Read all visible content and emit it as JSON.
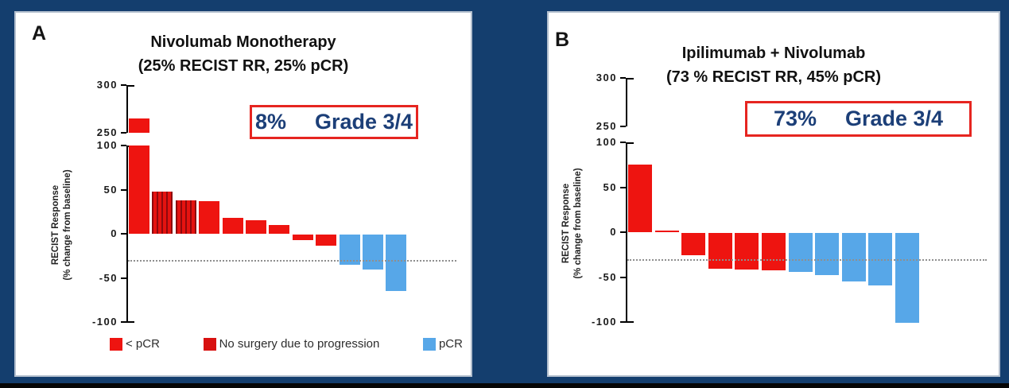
{
  "background_color": "#143e6e",
  "colors": {
    "slide_background": "#143e6e",
    "panel_background": "#ffffff",
    "bar_red": "#ee1410",
    "bar_red_striped": "#e51310",
    "bar_blue": "#57a7e8",
    "annotation_border": "#e62520",
    "annotation_text": "#1c3f78",
    "axis": "#000000",
    "reference_line": "#8f8f8f",
    "bottom_strip": "#060606"
  },
  "chart_data": [
    {
      "type": "bar",
      "panel": "A",
      "title": "Nivolumab Monotherapy",
      "subtitle": "(25% RECIST RR, 25% pCR)",
      "annotation": {
        "value": "8%",
        "label": "Grade 3/4"
      },
      "ylabel_lines": [
        "RECIST Response",
        "(% change from baseline)"
      ],
      "xlabel": "",
      "y_axis": {
        "broken": true,
        "upper_ticks": [
          300,
          250
        ],
        "main_ticks": [
          100,
          50,
          0,
          -50,
          -100
        ],
        "ylim_main": [
          -100,
          100
        ],
        "ylim_upper": [
          250,
          300
        ]
      },
      "reference_line": -30,
      "values": [
        265,
        48,
        38,
        37,
        18,
        15,
        10,
        -6,
        -13,
        -34,
        -40,
        -64
      ],
      "series_class": [
        "lt_pcr",
        "no_surgery",
        "no_surgery",
        "lt_pcr",
        "lt_pcr",
        "lt_pcr",
        "lt_pcr",
        "lt_pcr",
        "lt_pcr",
        "pcr",
        "pcr",
        "pcr"
      ],
      "legend": [
        {
          "key": "lt_pcr",
          "label": "< pCR"
        },
        {
          "key": "no_surgery",
          "label": "No surgery due to progression"
        },
        {
          "key": "pcr",
          "label": "pCR"
        }
      ],
      "legend_position": "bottom",
      "grid": false
    },
    {
      "type": "bar",
      "panel": "B",
      "title": "Ipilimumab + Nivolumab",
      "subtitle": "(73 % RECIST RR, 45% pCR)",
      "annotation": {
        "value": "73%",
        "label": "Grade 3/4"
      },
      "ylabel_lines": [
        "RECIST Response",
        "(% change from baseline)"
      ],
      "xlabel": "",
      "y_axis": {
        "broken": true,
        "upper_ticks": [
          300,
          250
        ],
        "main_ticks": [
          100,
          50,
          0,
          -50,
          -100
        ],
        "ylim_main": [
          -100,
          100
        ],
        "ylim_upper": [
          250,
          300
        ]
      },
      "reference_line": -30,
      "values": [
        75,
        2,
        -25,
        -40,
        -41,
        -42,
        -43,
        -47,
        -54,
        -58,
        -100
      ],
      "series_class": [
        "lt_pcr",
        "lt_pcr",
        "lt_pcr",
        "lt_pcr",
        "lt_pcr",
        "lt_pcr",
        "pcr",
        "pcr",
        "pcr",
        "pcr",
        "pcr"
      ],
      "legend": [],
      "legend_position": "none",
      "grid": false
    }
  ]
}
